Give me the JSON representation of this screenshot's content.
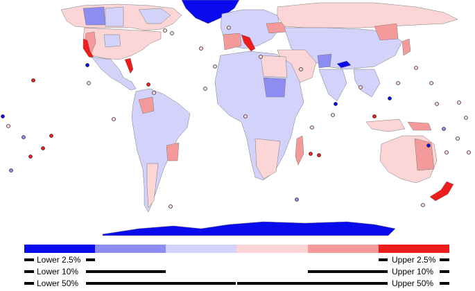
{
  "colors": {
    "lower_2_5": "#0a0aee",
    "lower_10": "#8c8cf2",
    "lower_50": "#d2d2fa",
    "upper_50": "#fcd6d6",
    "upper_10": "#f59a9a",
    "upper_2_5": "#ee1c1c",
    "land_border": "#7a7a7a",
    "island_stroke": "#333333"
  },
  "legend": {
    "lower_2_5": "Lower 2.5%",
    "lower_10": "Lower 10%",
    "lower_50": "Lower 50%",
    "upper_2_5": "Upper 2.5%",
    "upper_10": "Upper 10%",
    "upper_50": "Upper 50%"
  }
}
